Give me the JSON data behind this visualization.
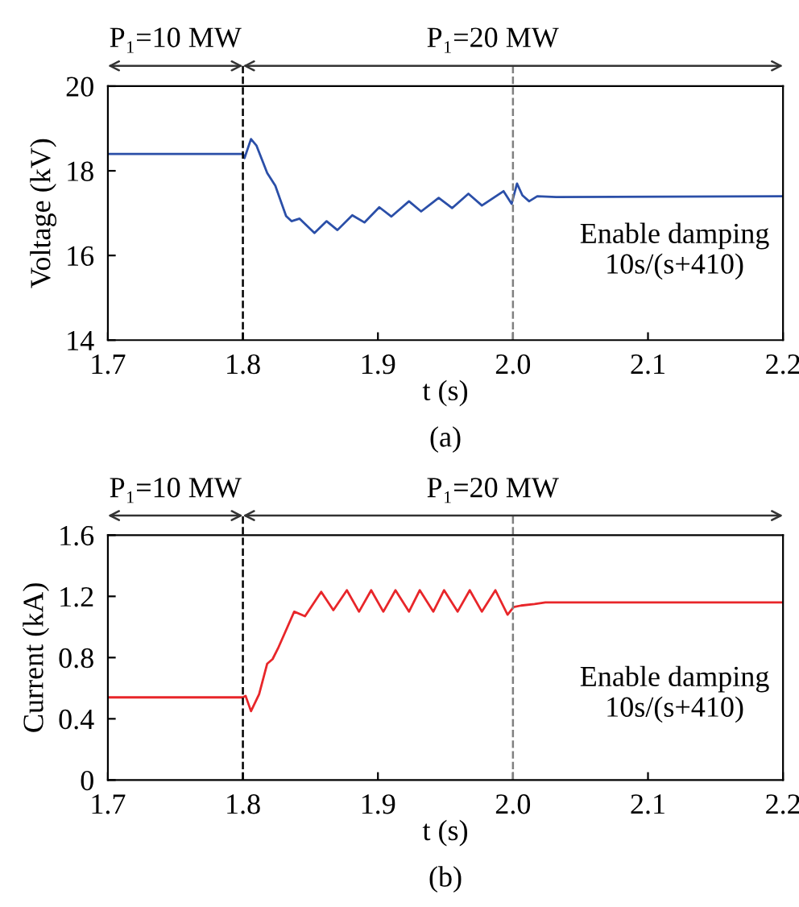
{
  "chart_data": [
    {
      "type": "line",
      "xlabel": "t (s)",
      "ylabel": "Voltage (kV)",
      "xlim": [
        1.7,
        2.2
      ],
      "xticks": [
        1.7,
        1.8,
        1.9,
        {
          "value": 2.0,
          "label": "2.0"
        },
        2.1,
        2.2
      ],
      "ylim": [
        14,
        20
      ],
      "yticks": [
        14,
        16,
        18,
        20
      ],
      "grid": false,
      "marker": "none",
      "line_style": "solid",
      "annotations": [
        "P₁=10 MW",
        "P₁=20 MW",
        "Enable damping\n10s/(s+410)",
        "(a)"
      ],
      "ref_lines": [
        {
          "axis": "x",
          "value": 1.8,
          "color": "#000000",
          "line_style": "dashed"
        },
        {
          "axis": "x",
          "value": 2.0,
          "color": "#808080",
          "line_style": "dashed"
        }
      ],
      "series": [
        {
          "color": "#2b4fa8",
          "x": [
            1.7,
            1.786,
            1.8,
            1.8012,
            1.806,
            1.81,
            1.818,
            1.824,
            1.832,
            1.836,
            1.842,
            1.853,
            1.862,
            1.87,
            1.881,
            1.89,
            1.901,
            1.91,
            1.923,
            1.932,
            1.945,
            1.955,
            1.967,
            1.977,
            1.993,
            1.999,
            2.003,
            2.007,
            2.012,
            2.018,
            2.032,
            2.2
          ],
          "values": [
            18.4,
            18.4,
            18.4,
            18.3,
            18.75,
            18.6,
            17.95,
            17.65,
            16.93,
            16.81,
            16.87,
            16.53,
            16.81,
            16.6,
            16.95,
            16.78,
            17.14,
            16.92,
            17.28,
            17.04,
            17.36,
            17.12,
            17.46,
            17.18,
            17.52,
            17.22,
            17.7,
            17.42,
            17.28,
            17.4,
            17.38,
            17.4
          ]
        }
      ]
    },
    {
      "type": "line",
      "xlabel": "t (s)",
      "ylabel": "Current (kA)",
      "xlim": [
        1.7,
        2.2
      ],
      "xticks": [
        1.7,
        1.8,
        1.9,
        {
          "value": 2.0,
          "label": "2.0"
        },
        2.1,
        2.2
      ],
      "ylim": [
        0,
        1.6
      ],
      "yticks": [
        0,
        0.4,
        0.8,
        1.2,
        1.6
      ],
      "grid": false,
      "marker": "none",
      "line_style": "solid",
      "annotations": [
        "P₁=10 MW",
        "P₁=20 MW",
        "Enable damping\n10s/(s+410)",
        "(b)"
      ],
      "ref_lines": [
        {
          "axis": "x",
          "value": 1.8,
          "color": "#000000",
          "line_style": "dashed"
        },
        {
          "axis": "x",
          "value": 2.0,
          "color": "#808080",
          "line_style": "dashed"
        }
      ],
      "series": [
        {
          "color": "#e8262a",
          "x": [
            1.7,
            1.8,
            1.802,
            1.806,
            1.812,
            1.818,
            1.822,
            1.826,
            1.838,
            1.846,
            1.858,
            1.867,
            1.877,
            1.886,
            1.895,
            1.904,
            1.913,
            1.923,
            1.931,
            1.941,
            1.949,
            1.959,
            1.968,
            1.977,
            1.987,
            1.996,
            2.0005,
            2.006,
            2.016,
            2.024,
            2.2
          ],
          "values": [
            0.54,
            0.54,
            0.55,
            0.45,
            0.56,
            0.76,
            0.79,
            0.86,
            1.1,
            1.07,
            1.23,
            1.11,
            1.24,
            1.1,
            1.24,
            1.1,
            1.24,
            1.1,
            1.24,
            1.1,
            1.24,
            1.1,
            1.24,
            1.1,
            1.24,
            1.08,
            1.13,
            1.14,
            1.15,
            1.16,
            1.16
          ]
        }
      ]
    }
  ]
}
